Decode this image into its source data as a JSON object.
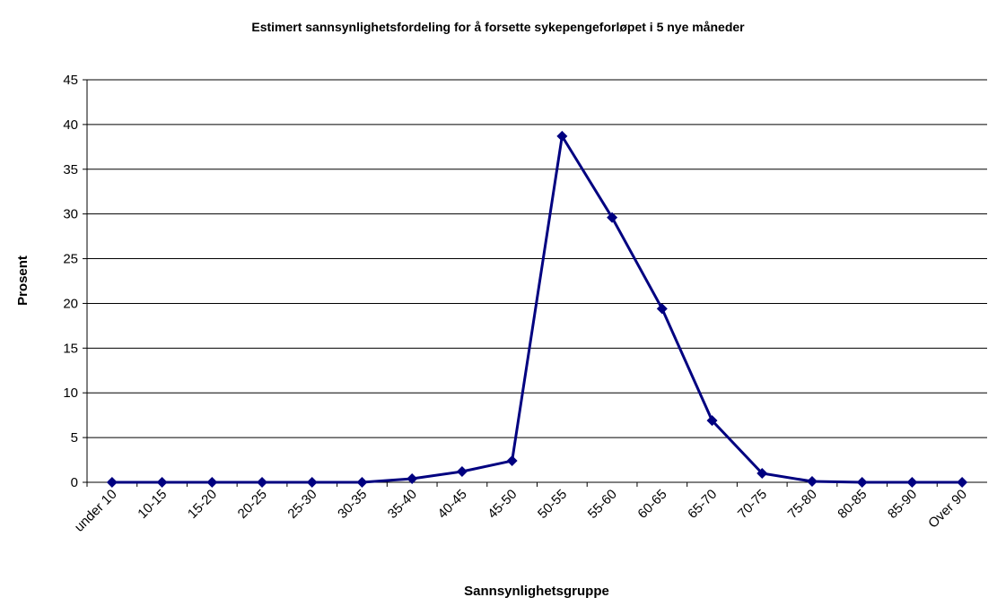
{
  "chart_data": {
    "type": "line",
    "title": "Estimert sannsynlighetsfordeling for å forsette sykepengeforløpet i 5 nye måneder",
    "x_label": "Sannsynlighetsgruppe",
    "y_label": "Prosent",
    "categories": [
      "under 10",
      "10-15",
      "15-20",
      "20-25",
      "25-30",
      "30-35",
      "35-40",
      "40-45",
      "45-50",
      "50-55",
      "55-60",
      "60-65",
      "65-70",
      "70-75",
      "75-80",
      "80-85",
      "85-90",
      "Over 90"
    ],
    "series": [
      {
        "name": "Prosent",
        "color": "#000080",
        "values": [
          0,
          0,
          0,
          0,
          0,
          0,
          0.4,
          1.2,
          2.4,
          38.7,
          29.6,
          19.4,
          6.9,
          1.0,
          0.1,
          0,
          0,
          0
        ]
      }
    ],
    "ylim": [
      0,
      45
    ],
    "yticks": [
      0,
      5,
      10,
      15,
      20,
      25,
      30,
      35,
      40,
      45
    ],
    "grid": true
  }
}
